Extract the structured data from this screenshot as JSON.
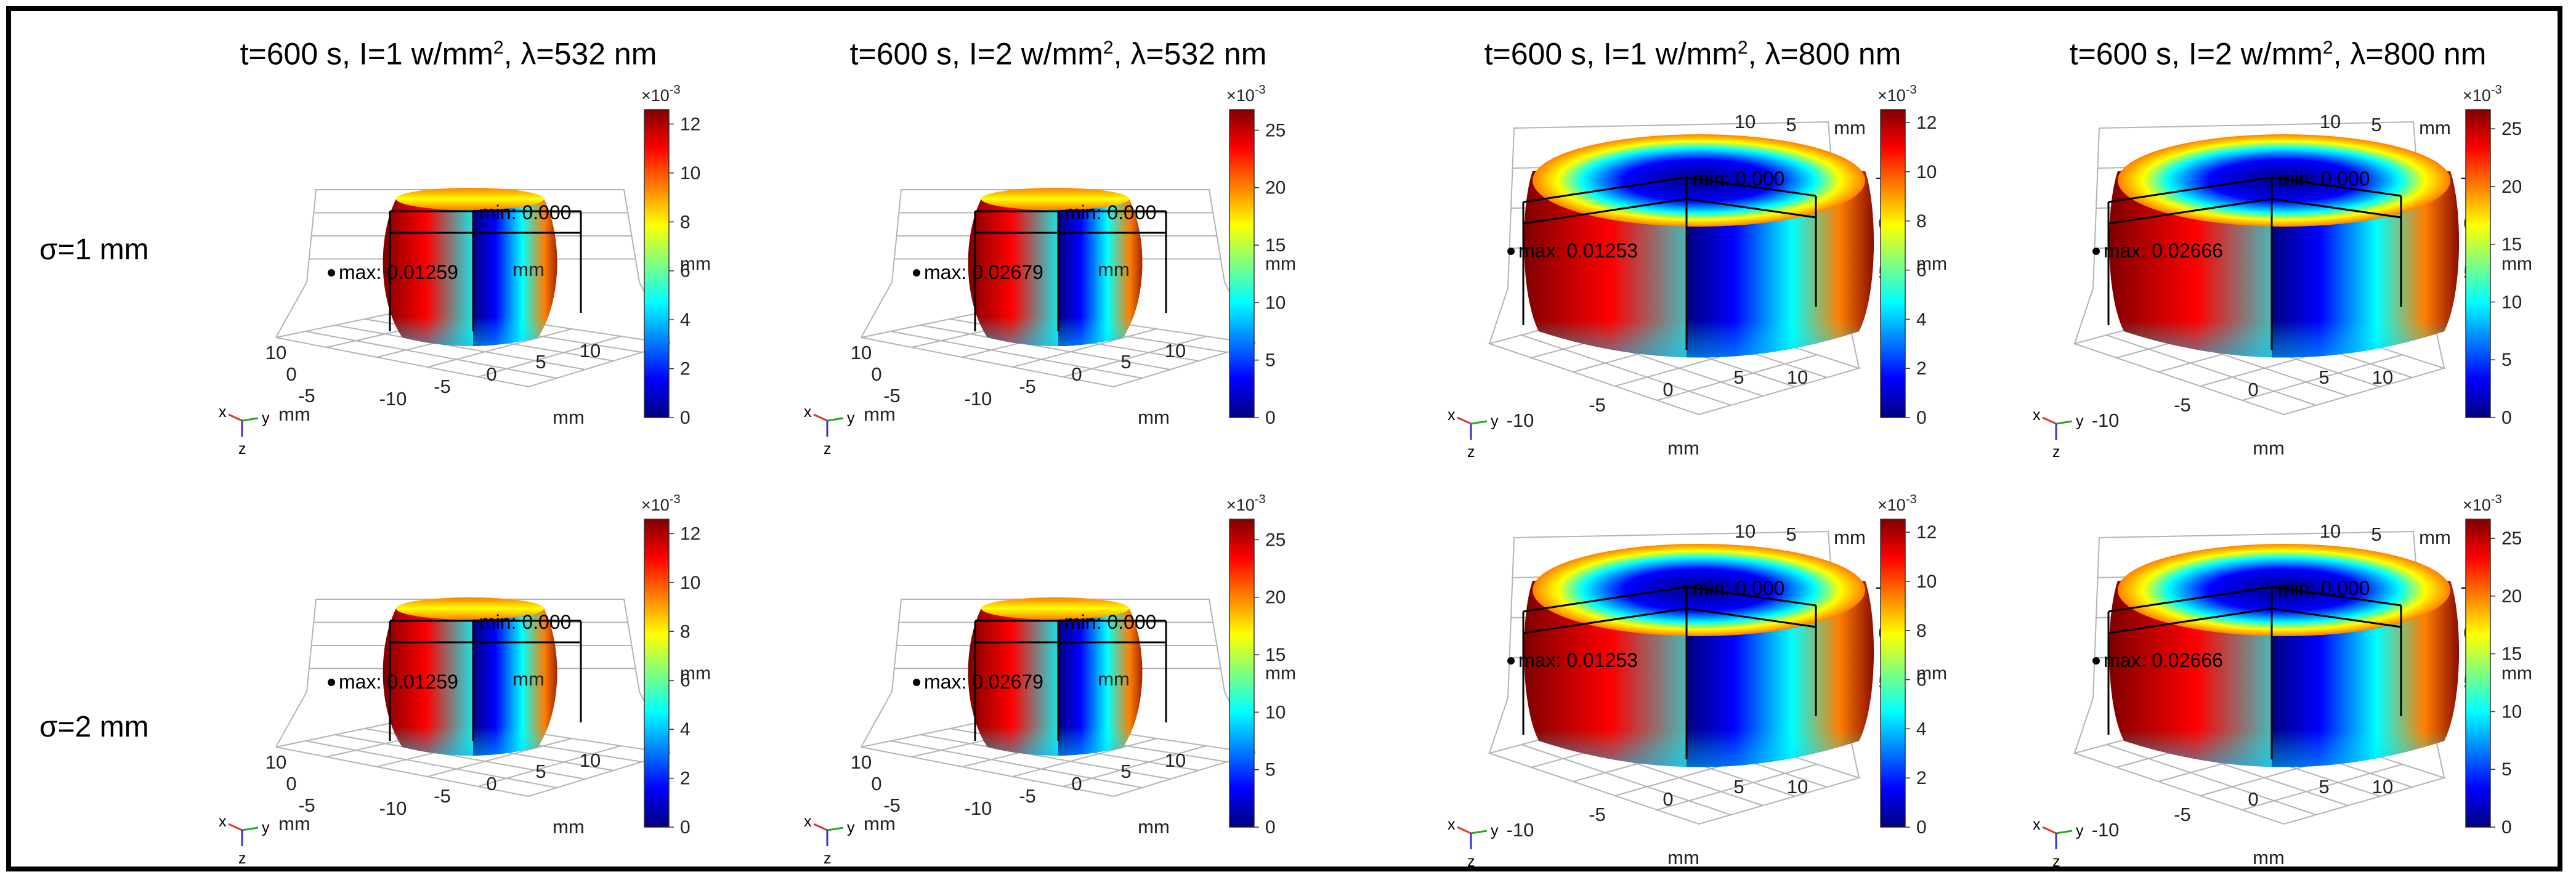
{
  "figure": {
    "columns": [
      {
        "title_pre": "t=600 s, I=1 w/mm",
        "title_sup": "2",
        "title_post": ", λ=532 nm"
      },
      {
        "title_pre": "t=600 s, I=2 w/mm",
        "title_sup": "2",
        "title_post": ", λ=532 nm"
      },
      {
        "title_pre": "t=600 s, I=1 w/mm",
        "title_sup": "2",
        "title_post": ", λ=800 nm"
      },
      {
        "title_pre": "t=600 s, I=2 w/mm",
        "title_sup": "2",
        "title_post": ", λ=800 nm"
      }
    ],
    "rows": [
      {
        "label": "σ=1 mm"
      },
      {
        "label": "σ=2 mm"
      }
    ]
  },
  "chart_data": [
    {
      "type": "heatmap",
      "row": "σ=1 mm",
      "column": "t=600 s, I=1 w/mm2, λ=532 nm",
      "max_label": "max: 0.01259",
      "min_label": "min: 0.000",
      "colorbar": {
        "exponent_label": "×10",
        "exponent": "-3",
        "ticks": [
          0,
          2,
          4,
          6,
          8,
          10,
          12
        ],
        "range": [
          0,
          12.59
        ],
        "unit": "mm"
      }
    },
    {
      "type": "heatmap",
      "row": "σ=1 mm",
      "column": "t=600 s, I=2 w/mm2, λ=532 nm",
      "max_label": "max: 0.02679",
      "min_label": "min: 0.000",
      "colorbar": {
        "exponent_label": "×10",
        "exponent": "-3",
        "ticks": [
          0,
          5,
          10,
          15,
          20,
          25
        ],
        "range": [
          0,
          26.79
        ],
        "unit": "mm"
      }
    },
    {
      "type": "heatmap",
      "row": "σ=1 mm",
      "column": "t=600 s, I=1 w/mm2, λ=800 nm",
      "max_label": "max: 0.01253",
      "min_label": "min: 0.000",
      "colorbar": {
        "exponent_label": "×10",
        "exponent": "-3",
        "ticks": [
          0,
          2,
          4,
          6,
          8,
          10,
          12
        ],
        "range": [
          0,
          12.53
        ],
        "unit": "mm"
      }
    },
    {
      "type": "heatmap",
      "row": "σ=1 mm",
      "column": "t=600 s, I=2 w/mm2, λ=800 nm",
      "max_label": "max: 0.02666",
      "min_label": "min: 0.000",
      "colorbar": {
        "exponent_label": "×10",
        "exponent": "-3",
        "ticks": [
          0,
          5,
          10,
          15,
          20,
          25
        ],
        "range": [
          0,
          26.66
        ],
        "unit": "mm"
      }
    },
    {
      "type": "heatmap",
      "row": "σ=2 mm",
      "column": "t=600 s, I=1 w/mm2, λ=532 nm",
      "max_label": "max: 0.01259",
      "min_label": "min: 0.000",
      "colorbar": {
        "exponent_label": "×10",
        "exponent": "-3",
        "ticks": [
          0,
          2,
          4,
          6,
          8,
          10,
          12
        ],
        "range": [
          0,
          12.59
        ],
        "unit": "mm"
      }
    },
    {
      "type": "heatmap",
      "row": "σ=2 mm",
      "column": "t=600 s, I=2 w/mm2, λ=532 nm",
      "max_label": "max: 0.02679",
      "min_label": "min: 0.000",
      "colorbar": {
        "exponent_label": "×10",
        "exponent": "-3",
        "ticks": [
          0,
          5,
          10,
          15,
          20,
          25
        ],
        "range": [
          0,
          26.79
        ],
        "unit": "mm"
      }
    },
    {
      "type": "heatmap",
      "row": "σ=2 mm",
      "column": "t=600 s, I=1 w/mm2, λ=800 nm",
      "max_label": "max: 0.01253",
      "min_label": "min: 0.000",
      "colorbar": {
        "exponent_label": "×10",
        "exponent": "-3",
        "ticks": [
          0,
          2,
          4,
          6,
          8,
          10,
          12
        ],
        "range": [
          0,
          12.53
        ],
        "unit": "mm"
      }
    },
    {
      "type": "heatmap",
      "row": "σ=2 mm",
      "column": "t=600 s, I=2 w/mm2, λ=800 nm",
      "max_label": "max: 0.02666",
      "min_label": "min: 0.000",
      "colorbar": {
        "exponent_label": "×10",
        "exponent": "-3",
        "ticks": [
          0,
          5,
          10,
          15,
          20,
          25
        ],
        "range": [
          0,
          26.66
        ],
        "unit": "mm"
      }
    }
  ],
  "axes": {
    "unit_label": "mm",
    "x_ticks": [
      "-10",
      "-5",
      "0",
      "5",
      "10"
    ],
    "y_ticks": [
      "10",
      "5",
      "0",
      "-5"
    ],
    "z_ticks": [
      "5",
      "0",
      "-5",
      "10"
    ],
    "triad": {
      "x": "x",
      "y": "y",
      "z": "z"
    }
  },
  "colors": {
    "jet": [
      "#00007f",
      "#0000ff",
      "#007fff",
      "#00ffff",
      "#7fff7f",
      "#ffff00",
      "#ff7f00",
      "#ff0000",
      "#7f0000"
    ],
    "frame": "#000000",
    "grid": "#b4b4b4"
  }
}
